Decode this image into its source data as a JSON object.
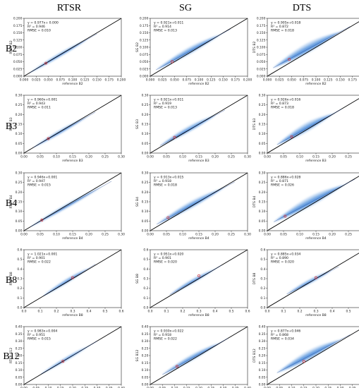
{
  "columns": [
    "RTSR",
    "SG",
    "DTS"
  ],
  "rows": [
    "B2",
    "B3",
    "B4",
    "B8",
    "B12"
  ],
  "colors": {
    "density": "#3b82d6",
    "line": "#000000",
    "marker": "#e03030",
    "axis": "#222222"
  },
  "chart_data": [
    {
      "type": "scatter",
      "row": "B2",
      "method": "RTSR",
      "xlabel": "reference B2",
      "ylabel": "RTSR B2",
      "lim": [
        0,
        0.2
      ],
      "ticks": [
        "0.000",
        "0.025",
        "0.050",
        "0.075",
        "0.100",
        "0.125",
        "0.150",
        "0.175",
        "0.200"
      ],
      "equation": "y = 0.977x+ 0.000",
      "r2": "R² = 0.946",
      "rmse": "RMSE = 0.010",
      "slope": 0.977,
      "intercept": 0.0,
      "spread": 0.08,
      "span": [
        0.012,
        0.15
      ],
      "center": [
        0.045,
        0.045
      ]
    },
    {
      "type": "scatter",
      "row": "B2",
      "method": "SG",
      "xlabel": "reference B2",
      "ylabel": "SG B2",
      "lim": [
        0,
        0.2
      ],
      "ticks": [
        "0.000",
        "0.025",
        "0.050",
        "0.075",
        "0.100",
        "0.125",
        "0.150",
        "0.175",
        "0.200"
      ],
      "equation": "y = 0.921x+0.011",
      "r2": "R² = 0.914",
      "rmse": "RMSE = 0.013",
      "slope": 0.921,
      "intercept": 0.011,
      "spread": 0.14,
      "span": [
        0.012,
        0.165
      ],
      "center": [
        0.045,
        0.05
      ]
    },
    {
      "type": "scatter",
      "row": "B2",
      "method": "DTS",
      "xlabel": "reference B2",
      "ylabel": "DTS B2",
      "lim": [
        0,
        0.2
      ],
      "ticks": [
        "0.000",
        "0.025",
        "0.050",
        "0.075",
        "0.100",
        "0.125",
        "0.150",
        "0.175",
        "0.200"
      ],
      "equation": "y = 0.905x+0.018",
      "r2": "R² = 0.872",
      "rmse": "RMSE = 0.018",
      "slope": 0.905,
      "intercept": 0.018,
      "spread": 0.2,
      "span": [
        0.012,
        0.17
      ],
      "center": [
        0.045,
        0.058
      ]
    },
    {
      "type": "scatter",
      "row": "B3",
      "method": "RTSR",
      "xlabel": "reference B3",
      "ylabel": "RTSR B3",
      "lim": [
        0,
        0.3
      ],
      "ticks": [
        "0.00",
        "0.05",
        "0.10",
        "0.15",
        "0.20",
        "0.25",
        "0.30"
      ],
      "equation": "y = 0.960x+0.001",
      "r2": "R² = 0.943",
      "rmse": "RMSE = 0.011",
      "slope": 0.96,
      "intercept": 0.001,
      "spread": 0.08,
      "span": [
        0.03,
        0.22
      ],
      "center": [
        0.075,
        0.075
      ]
    },
    {
      "type": "scatter",
      "row": "B3",
      "method": "SG",
      "xlabel": "reference B3",
      "ylabel": "SG B3",
      "lim": [
        0,
        0.3
      ],
      "ticks": [
        "0.00",
        "0.05",
        "0.10",
        "0.15",
        "0.20",
        "0.25",
        "0.30"
      ],
      "equation": "y = 0.921x+0.011",
      "r2": "R² = 0.919",
      "rmse": "RMSE = 0.013",
      "slope": 0.921,
      "intercept": 0.011,
      "spread": 0.12,
      "span": [
        0.03,
        0.23
      ],
      "center": [
        0.075,
        0.082
      ]
    },
    {
      "type": "scatter",
      "row": "B3",
      "method": "DTS",
      "xlabel": "reference B3",
      "ylabel": "DTS B3",
      "lim": [
        0,
        0.3
      ],
      "ticks": [
        "0.00",
        "0.05",
        "0.10",
        "0.15",
        "0.20",
        "0.25",
        "0.30"
      ],
      "equation": "y = 0.926x+0.016",
      "r2": "R² = 0.873",
      "rmse": "RMSE = 0.018",
      "slope": 0.926,
      "intercept": 0.016,
      "spread": 0.18,
      "span": [
        0.03,
        0.23
      ],
      "center": [
        0.075,
        0.085
      ]
    },
    {
      "type": "scatter",
      "row": "B4",
      "method": "RTSR",
      "xlabel": "reference B4",
      "ylabel": "RTSR B4",
      "lim": [
        0,
        0.3
      ],
      "ticks": [
        "0.00",
        "0.05",
        "0.10",
        "0.15",
        "0.20",
        "0.25",
        "0.30"
      ],
      "equation": "y = 0.946x+0.001",
      "r2": "R² = 0.947",
      "rmse": "RMSE = 0.015",
      "slope": 0.946,
      "intercept": 0.001,
      "spread": 0.08,
      "span": [
        0.02,
        0.27
      ],
      "center": [
        0.055,
        0.055
      ]
    },
    {
      "type": "scatter",
      "row": "B4",
      "method": "SG",
      "xlabel": "reference B4",
      "ylabel": "SG B4",
      "lim": [
        0,
        0.3
      ],
      "ticks": [
        "0.00",
        "0.05",
        "0.10",
        "0.15",
        "0.20",
        "0.25",
        "0.30"
      ],
      "equation": "y = 0.913x+0.015",
      "r2": "R² = 0.918",
      "rmse": "RMSE = 0.018",
      "slope": 0.913,
      "intercept": 0.015,
      "spread": 0.14,
      "span": [
        0.02,
        0.26
      ],
      "center": [
        0.055,
        0.068
      ]
    },
    {
      "type": "scatter",
      "row": "B4",
      "method": "DTS",
      "xlabel": "reference B4",
      "ylabel": "DTS B4",
      "lim": [
        0,
        0.3
      ],
      "ticks": [
        "0.00",
        "0.05",
        "0.10",
        "0.15",
        "0.20",
        "0.25",
        "0.30"
      ],
      "equation": "y = 0.886x+0.028",
      "r2": "R² = 0.871",
      "rmse": "RMSE = 0.026",
      "slope": 0.886,
      "intercept": 0.028,
      "spread": 0.2,
      "span": [
        0.02,
        0.27
      ],
      "center": [
        0.055,
        0.075
      ]
    },
    {
      "type": "scatter",
      "row": "B8",
      "method": "RTSR",
      "xlabel": "reference B8",
      "ylabel": "RTSR B8",
      "lim": [
        0,
        0.6
      ],
      "ticks": [
        "0.0",
        "0.1",
        "0.2",
        "0.3",
        "0.4",
        "0.5",
        "0.6"
      ],
      "equation": "y = 1.021x+0.001",
      "r2": "R² = 0.901",
      "rmse": "RMSE = 0.022",
      "slope": 1.021,
      "intercept": 0.001,
      "spread": 0.09,
      "span": [
        0.12,
        0.44
      ],
      "center": [
        0.3,
        0.31
      ]
    },
    {
      "type": "scatter",
      "row": "B8",
      "method": "SG",
      "xlabel": "reference B8",
      "ylabel": "SG B8",
      "lim": [
        0,
        0.6
      ],
      "ticks": [
        "0.0",
        "0.1",
        "0.2",
        "0.3",
        "0.4",
        "0.5",
        "0.6"
      ],
      "equation": "y = 0.951x+0.020",
      "r2": "R² = 0.901",
      "rmse": "RMSE = 0.020",
      "slope": 0.951,
      "intercept": 0.02,
      "spread": 0.09,
      "span": [
        0.12,
        0.44
      ],
      "center": [
        0.3,
        0.33
      ]
    },
    {
      "type": "scatter",
      "row": "B8",
      "method": "DTS",
      "xlabel": "reference B8",
      "ylabel": "DTS B8",
      "lim": [
        0,
        0.6
      ],
      "ticks": [
        "0.0",
        "0.1",
        "0.2",
        "0.3",
        "0.4",
        "0.5",
        "0.6"
      ],
      "equation": "y = 0.885x+0.034",
      "r2": "R² = 0.890",
      "rmse": "RMSE = 0.020",
      "slope": 0.885,
      "intercept": 0.034,
      "spread": 0.09,
      "span": [
        0.12,
        0.44
      ],
      "center": [
        0.3,
        0.31
      ]
    },
    {
      "type": "scatter",
      "row": "B12",
      "method": "RTSR",
      "xlabel": "reference B12",
      "ylabel": "RTSR B12",
      "lim": [
        0,
        0.4
      ],
      "ticks": [
        "0.00",
        "0.05",
        "0.10",
        "0.15",
        "0.20",
        "0.25",
        "0.30",
        "0.35",
        "0.40"
      ],
      "equation": "y = 0.983x+0.004",
      "r2": "R² = 0.951",
      "rmse": "RMSE = 0.015",
      "slope": 0.983,
      "intercept": 0.004,
      "spread": 0.07,
      "span": [
        0.07,
        0.3
      ],
      "center": [
        0.16,
        0.16
      ]
    },
    {
      "type": "scatter",
      "row": "B12",
      "method": "SG",
      "xlabel": "reference B12",
      "ylabel": "SG B12",
      "lim": [
        0,
        0.4
      ],
      "ticks": [
        "0.00",
        "0.05",
        "0.10",
        "0.15",
        "0.20",
        "0.25",
        "0.30",
        "0.35",
        "0.40"
      ],
      "equation": "y = 0.930x+0.022",
      "r2": "R² = 0.918",
      "rmse": "RMSE = 0.022",
      "slope": 0.93,
      "intercept": 0.022,
      "spread": 0.12,
      "span": [
        0.05,
        0.32
      ],
      "center": [
        0.11,
        0.125
      ]
    },
    {
      "type": "scatter",
      "row": "B12",
      "method": "DTS",
      "xlabel": "reference B12",
      "ylabel": "DTS B12",
      "lim": [
        0,
        0.4
      ],
      "ticks": [
        "0.00",
        "0.05",
        "0.10",
        "0.15",
        "0.20",
        "0.25",
        "0.30",
        "0.35",
        "0.40"
      ],
      "equation": "y = 0.877x+0.046",
      "r2": "R² = 0.868",
      "rmse": "RMSE = 0.034",
      "slope": 0.877,
      "intercept": 0.046,
      "spread": 0.18,
      "span": [
        0.04,
        0.34
      ],
      "center": [
        0.15,
        0.16
      ]
    }
  ]
}
